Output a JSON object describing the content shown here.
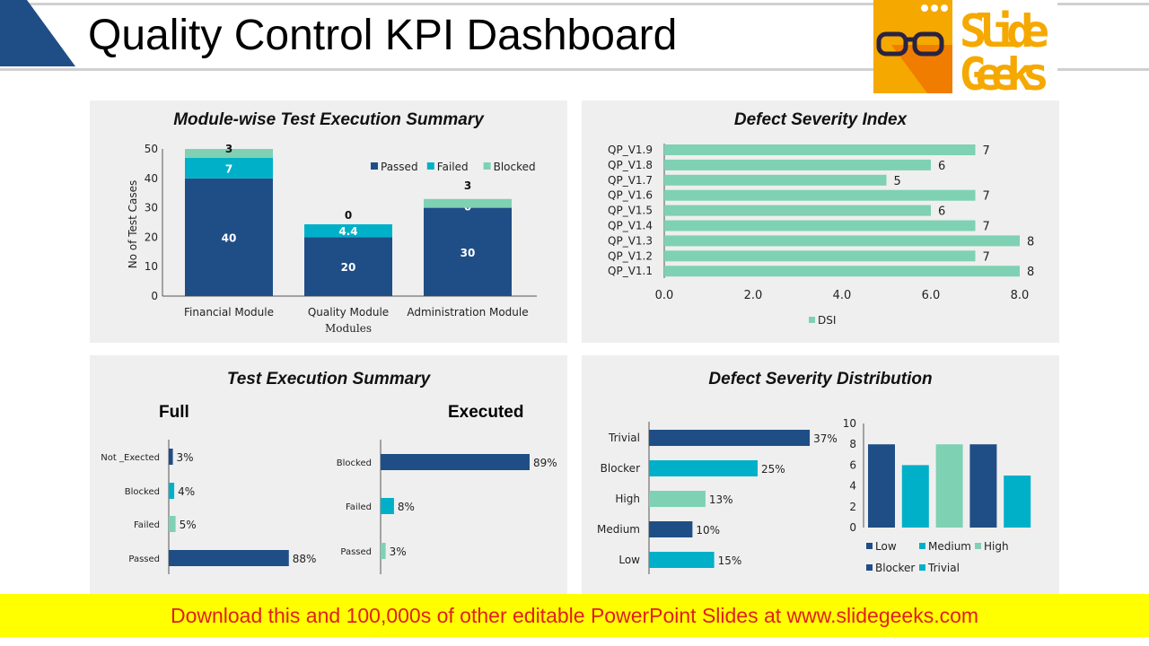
{
  "header": {
    "title": "Quality Control KPI Dashboard",
    "logo_text": [
      "Slide",
      "Geeks"
    ]
  },
  "colors": {
    "dark_blue": "#1f4e87",
    "teal": "#00b0c8",
    "light_green": "#7fd1b3",
    "corner": "#1f4e87",
    "logo_orange": "#f5a800",
    "footer_bg": "#ffff00",
    "footer_text": "#e0201e"
  },
  "footer": {
    "text": "Download this and 100,000s of other editable PowerPoint Slides at www.slidegeeks.com"
  },
  "chart_data": [
    {
      "id": "module_summary",
      "type": "bar",
      "stacked": true,
      "title": "Module-wise Test Execution Summary",
      "xlabel": "Modules",
      "ylabel": "No of Test Cases",
      "ylim": [
        0,
        50
      ],
      "yticks": [
        "0",
        "10",
        "20",
        "30",
        "40",
        "50"
      ],
      "categories": [
        "Financial Module",
        "Quality Module",
        "Administration Module"
      ],
      "legend": "top-right",
      "series": [
        {
          "name": "Passed",
          "values": [
            40,
            20,
            30
          ],
          "labels": [
            "40",
            "20",
            "30"
          ]
        },
        {
          "name": "Failed",
          "values": [
            7,
            4.4,
            0
          ],
          "labels": [
            "7",
            "4.4",
            "0"
          ]
        },
        {
          "name": "Blocked",
          "values": [
            3,
            0,
            3
          ],
          "labels": [
            "3",
            "0",
            "3"
          ]
        }
      ]
    },
    {
      "id": "dsi",
      "type": "bar",
      "orientation": "horizontal",
      "title": "Defect Severity Index",
      "xlim": [
        0,
        8
      ],
      "xticks": [
        "0.0",
        "2.0",
        "4.0",
        "6.0",
        "8.0"
      ],
      "legend": "bottom",
      "categories": [
        "QP_V1.9",
        "QP_V1.8",
        "QP_V1.7",
        "QP_V1.6",
        "QP_V1.5",
        "QP_V1.4",
        "QP_V1.3",
        "QP_V1.2",
        "QP_V1.1"
      ],
      "series": [
        {
          "name": "DSI",
          "values": [
            7,
            6,
            5,
            7,
            6,
            7,
            8,
            7,
            8
          ]
        }
      ]
    },
    {
      "id": "exec_full",
      "type": "bar",
      "orientation": "horizontal",
      "panel_title": "Test Execution Summary",
      "title": "Full",
      "categories": [
        "Not _Exected",
        "Blocked",
        "Failed",
        "Passed"
      ],
      "values": [
        3,
        4,
        5,
        88
      ],
      "labels": [
        "3%",
        "4%",
        "5%",
        "88%"
      ]
    },
    {
      "id": "exec_executed",
      "type": "bar",
      "orientation": "horizontal",
      "title": "Executed",
      "categories": [
        "Blocked",
        "Failed",
        "Passed"
      ],
      "values": [
        89,
        8,
        3
      ],
      "labels": [
        "89%",
        "8%",
        "3%"
      ]
    },
    {
      "id": "severity_pct",
      "type": "bar",
      "orientation": "horizontal",
      "panel_title": "Defect Severity Distribution",
      "categories": [
        "Trivial",
        "Blocker",
        "High",
        "Medium",
        "Low"
      ],
      "values": [
        37,
        25,
        13,
        10,
        15
      ],
      "labels": [
        "37%",
        "25%",
        "13%",
        "10%",
        "15%"
      ]
    },
    {
      "id": "severity_count",
      "type": "bar",
      "ylim": [
        0,
        10
      ],
      "yticks": [
        "0",
        "2",
        "4",
        "6",
        "8",
        "10"
      ],
      "legend": "bottom",
      "series": [
        {
          "name": "Low",
          "values": [
            8
          ]
        },
        {
          "name": "Medium",
          "values": [
            6
          ]
        },
        {
          "name": "High",
          "values": [
            8
          ]
        },
        {
          "name": "Blocker",
          "values": [
            8
          ]
        },
        {
          "name": "Trivial",
          "values": [
            5
          ]
        }
      ]
    }
  ]
}
